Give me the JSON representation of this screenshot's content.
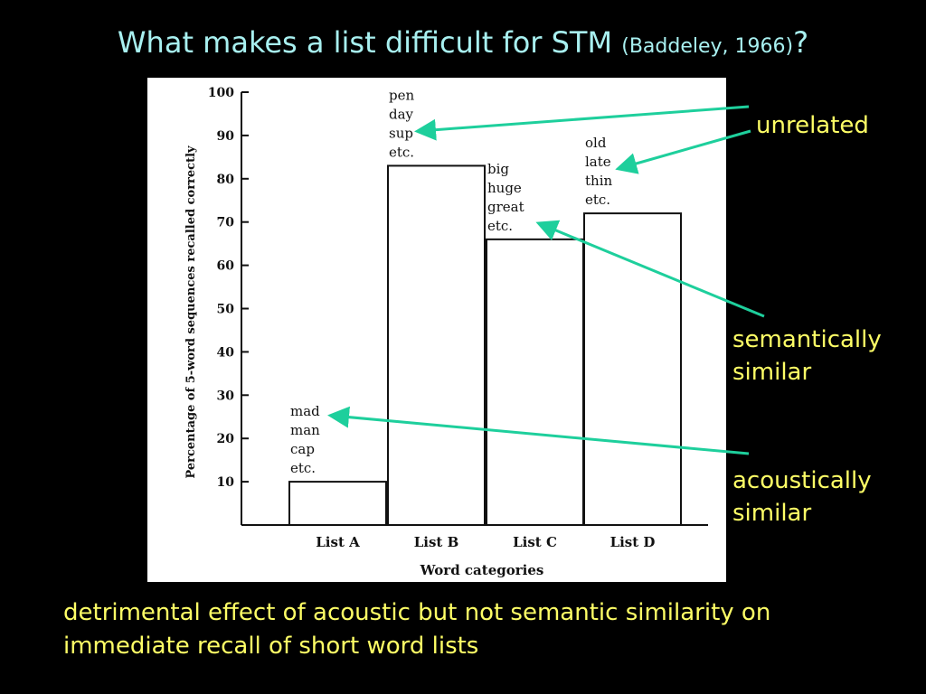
{
  "title": {
    "main": "What makes a list difficult for STM ",
    "citation": "(Baddeley, 1966)",
    "suffix": "?"
  },
  "chart_data": {
    "type": "bar",
    "categories": [
      "List A",
      "List B",
      "List C",
      "List D"
    ],
    "values": [
      10,
      83,
      66,
      72
    ],
    "word_examples": [
      [
        "mad",
        "man",
        "cap",
        "etc."
      ],
      [
        "pen",
        "day",
        "sup",
        "etc."
      ],
      [
        "big",
        "huge",
        "great",
        "etc."
      ],
      [
        "old",
        "late",
        "thin",
        "etc."
      ]
    ],
    "xlabel": "Word categories",
    "ylabel": "Percentage of 5-word sequences recalled correctly",
    "ylim": [
      0,
      100
    ],
    "yticks": [
      10,
      20,
      30,
      40,
      50,
      60,
      70,
      80,
      90,
      100
    ],
    "grid": false
  },
  "callouts": {
    "unrelated": "unrelated",
    "semantic_line1": "semantically",
    "semantic_line2": "similar",
    "acoustic_line1": "acoustically",
    "acoustic_line2": "similar"
  },
  "conclusion": {
    "line1": "detrimental effect of acoustic but not semantic similarity on",
    "line2": "immediate recall of short word lists"
  },
  "colors": {
    "background": "#000000",
    "title": "#a8f0f0",
    "callout_text": "#ffff66",
    "arrow": "#1ecf9c",
    "chart_ink": "#111111"
  }
}
